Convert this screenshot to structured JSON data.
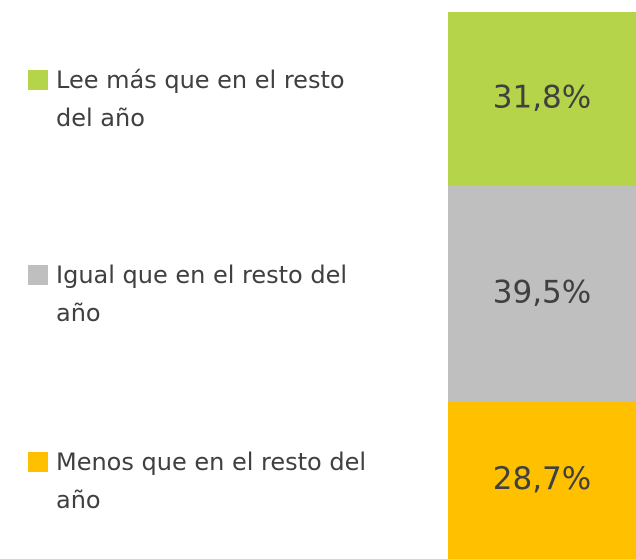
{
  "chart_data": {
    "type": "stacked_bar",
    "series": [
      {
        "name": "Lee más que en el resto del año",
        "color": "#b5d44a",
        "values": [
          31.8
        ],
        "value_labels": [
          "31,8%"
        ]
      },
      {
        "name": "Igual que en el resto del año",
        "color": "#bfbfbf",
        "values": [
          39.5
        ],
        "value_labels": [
          "39,5%"
        ]
      },
      {
        "name": "Menos que en el resto del año",
        "color": "#ffc000",
        "values": [
          28.7
        ],
        "value_labels": [
          "28,7%"
        ]
      }
    ]
  }
}
